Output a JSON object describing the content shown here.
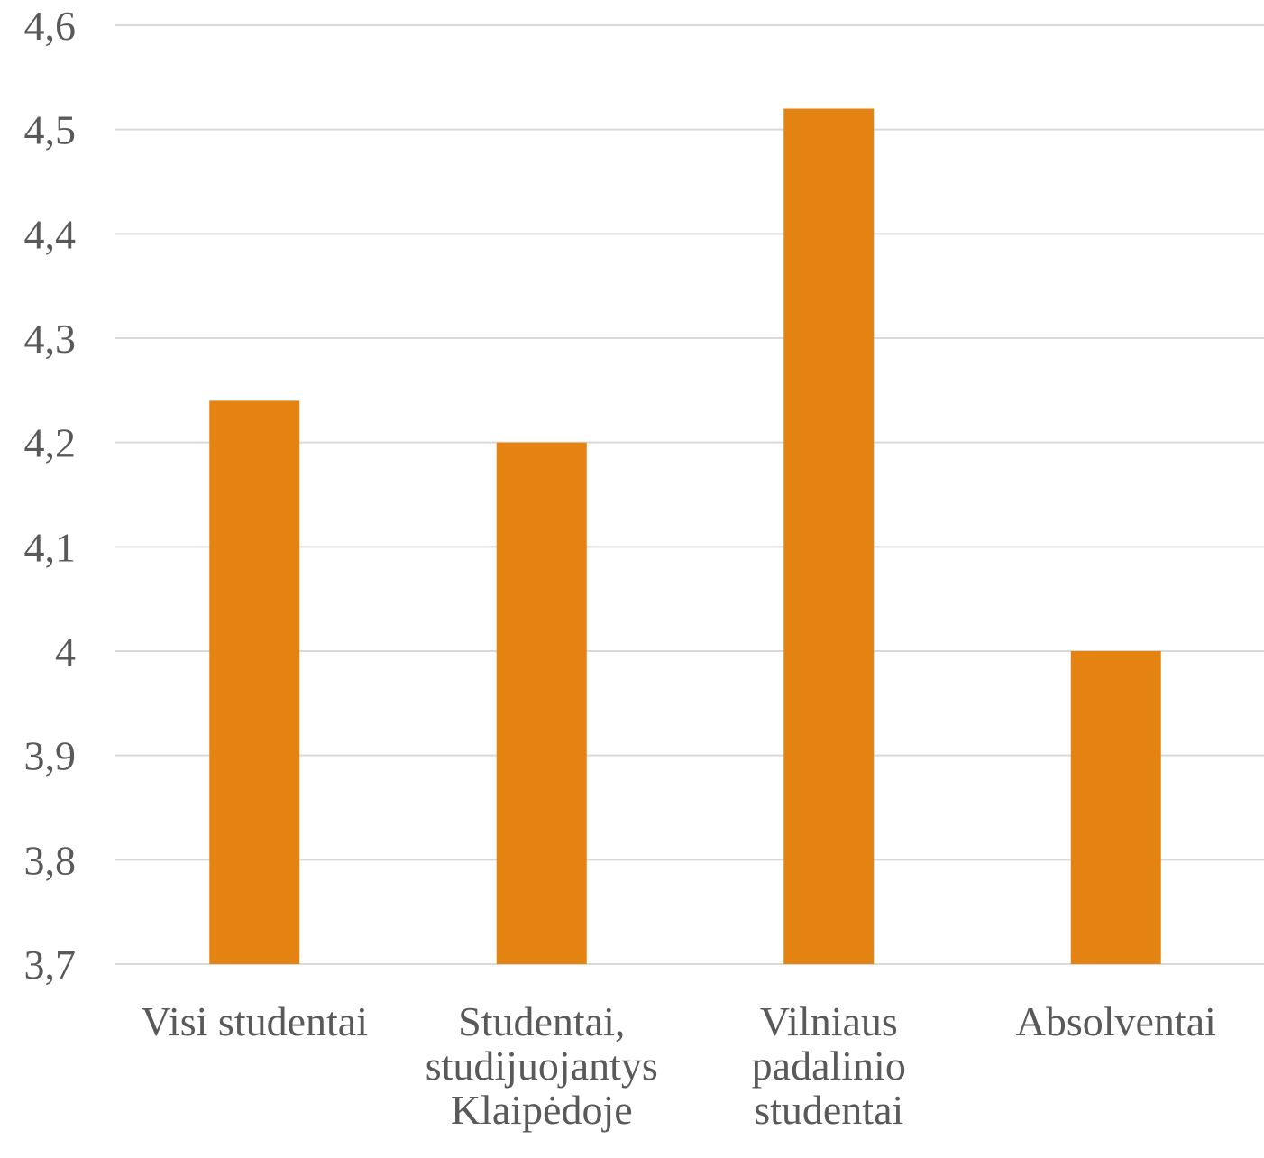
{
  "chart_data": {
    "type": "bar",
    "categories": [
      [
        "Visi studentai"
      ],
      [
        "Studentai,",
        "studijuojantys",
        "Klaipėdoje"
      ],
      [
        "Vilniaus",
        "padalinio",
        "studentai"
      ],
      [
        "Absolventai"
      ]
    ],
    "values": [
      4.24,
      4.2,
      4.52,
      4.0
    ],
    "y_ticks": [
      "3,7",
      "3,8",
      "3,9",
      "4",
      "4,1",
      "4,2",
      "4,3",
      "4,4",
      "4,5",
      "4,6"
    ],
    "ylim": [
      3.7,
      4.6
    ],
    "grid": true,
    "bar_color": "#E48312"
  }
}
